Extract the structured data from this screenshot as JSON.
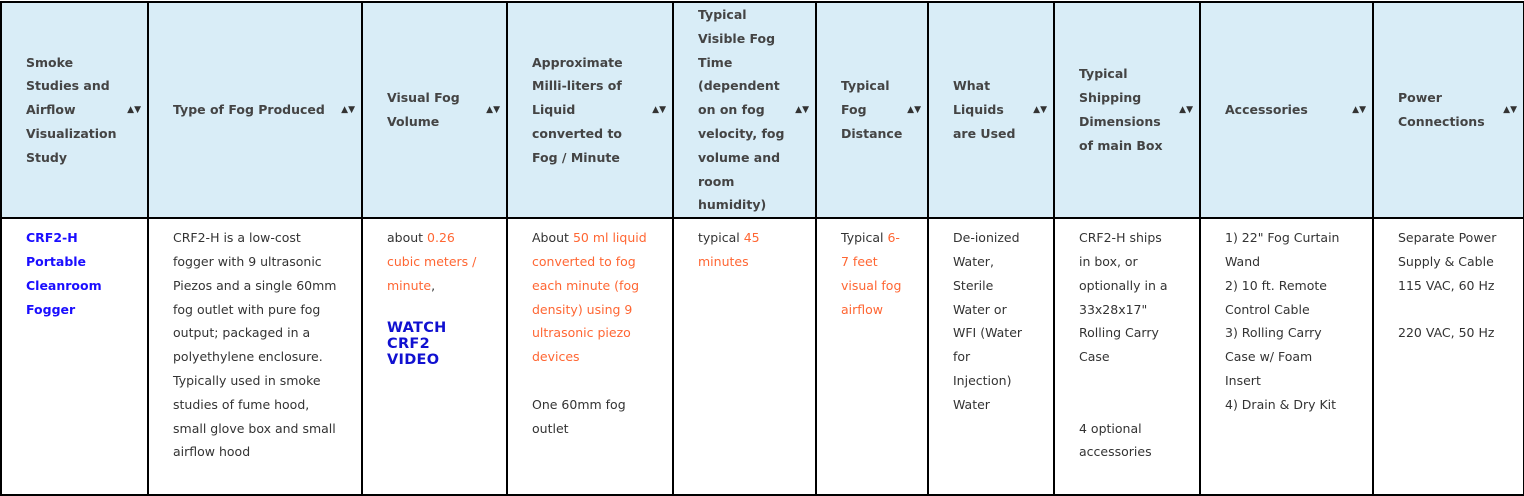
{
  "colors": {
    "header_bg": "#d9edf7",
    "link_blue": "#1a0dff",
    "highlight_orange": "#ff6633"
  },
  "headers": [
    "Smoke Studies and Airflow Visualization Study",
    "Type of Fog Produced",
    "Visual Fog Volume",
    "Approximate Milli-liters of Liquid converted to Fog / Minute",
    "Typical Visible Fog Time (dependent on on fog velocity, fog volume and room humidity)",
    "Typical Fog Distance",
    "What Liquids are Used",
    "Typical Shipping Dimensions of main Box",
    "Accessories",
    "Power Connections"
  ],
  "sort_icon": "sort-arrows-icon",
  "row": {
    "product": "CRF2-H Portable Cleanroom Fogger",
    "fog_type": "CRF2-H is a low-cost fogger with 9 ultrasonic Piezos and a single 60mm fog outlet with pure fog output; packaged in a polyethylene enclosure. Typically used in smoke studies of fume hood, small glove box and small airflow hood",
    "volume_prefix": "about ",
    "volume_value": "0.26 cubic meters / minute",
    "volume_suffix": ",",
    "video_link": "WATCH CRF2 VIDEO",
    "ml_prefix": "About ",
    "ml_value": "50 ml liquid converted to fog each minute (fog density) using 9 ultrasonic piezo devices",
    "ml_outlet": "One 60mm fog outlet",
    "time_prefix": "typical ",
    "time_value": "45 minutes",
    "distance_prefix": "Typical ",
    "distance_value": "6-7 feet visual fog airflow",
    "liquids": "De-ionized Water, Sterile Water or WFI (Water for Injection) Water",
    "shipping": "CRF2-H ships in box, or optionally in a 33x28x17\" Rolling Carry Case",
    "shipping_note": "4 optional accessories",
    "accessories": [
      "1) 22\" Fog Curtain Wand",
      "2) 10 ft. Remote Control Cable",
      "3) Rolling Carry Case w/ Foam Insert",
      "4) Drain & Dry Kit"
    ],
    "power_intro": "Separate Power Supply & Cable",
    "power_115": "115 VAC, 60 Hz",
    "power_220": "220 VAC, 50 Hz"
  }
}
